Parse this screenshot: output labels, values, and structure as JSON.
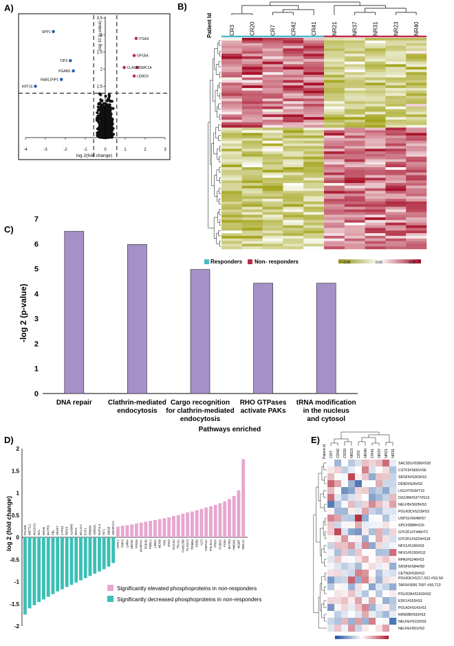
{
  "panels": {
    "a": "A)",
    "b": "B)",
    "c": "C)",
    "d": "D)",
    "e": "E)"
  },
  "colors": {
    "responder": "#4bb7c9",
    "nonresponder": "#c0294a",
    "bar_purple": "#a690c8",
    "pink": "#e7a6cf",
    "teal": "#3bbfb6",
    "blue_dot": "#1f63b0",
    "red_dot": "#c0294a",
    "olive": "#a5a520",
    "crimson": "#a8112a"
  },
  "chart_data": [
    {
      "type": "scatter",
      "panel": "A",
      "xlabel": "log 2(fold change)",
      "ylabel": "-log 10 (p-value)",
      "xlim": [
        -4,
        3
      ],
      "ylim": [
        0,
        3.5
      ],
      "x_ticks": [
        "-4",
        "-3",
        "-2",
        "-1",
        "0",
        "1",
        "2",
        "3"
      ],
      "y_ticks": [
        "0.5",
        "1",
        "1.5",
        "2",
        "2.5",
        "3",
        "3.5"
      ],
      "thresholds": {
        "x_left": -0.58,
        "x_right": 0.58,
        "y": 1.3
      },
      "labels": [
        {
          "text": "SPP1",
          "x": -2.6,
          "y": 3.1
        },
        {
          "text": "TJP2",
          "x": -1.75,
          "y": 2.25
        },
        {
          "text": "PGAM1",
          "x": -1.6,
          "y": 1.95
        },
        {
          "text": "KRT15",
          "x": -3.5,
          "y": 1.5
        },
        {
          "text": "RAB11FIP1",
          "x": -2.2,
          "y": 1.7
        },
        {
          "text": "ITGA3",
          "x": 1.55,
          "y": 2.9
        },
        {
          "text": "GP1BA",
          "x": 1.45,
          "y": 2.4
        },
        {
          "text": "SMC1A",
          "x": 1.6,
          "y": 2.05
        },
        {
          "text": "LEMD3",
          "x": 1.45,
          "y": 1.8
        },
        {
          "text": "CLASP2",
          "x": 0.95,
          "y": 2.05
        }
      ]
    },
    {
      "type": "heatmap",
      "panel": "B",
      "row_header": "Patient Id",
      "columns": [
        "CR3",
        "CR20",
        "CR7",
        "CR42",
        "CR41",
        "NR21",
        "NR37",
        "NR31",
        "NR23",
        "NR40"
      ],
      "legend_groups": [
        "Responders",
        "Non- responders"
      ],
      "color_scale": [
        "-1.50",
        "0.00",
        "1.50"
      ],
      "row_count": 80
    },
    {
      "type": "bar",
      "panel": "C",
      "title": "Pathways enriched",
      "ylabel": "-log 2 (p-value)",
      "ylim": [
        0,
        7
      ],
      "y_ticks": [
        "0",
        "1",
        "2",
        "3",
        "4",
        "5",
        "6",
        "7"
      ],
      "categories": [
        [
          "DNA repair"
        ],
        [
          "Clathrin-mediated",
          "endocytosis"
        ],
        [
          "Cargo recognition",
          "for clathrin-mediated",
          "endocytosis"
        ],
        [
          "RHO GTPases",
          "activate PAKs"
        ],
        [
          "tRNA modification",
          "in the nucleus",
          "and cytosol"
        ]
      ],
      "values": [
        6.5,
        5.97,
        4.97,
        4.42,
        4.42
      ]
    },
    {
      "type": "bar",
      "panel": "D",
      "ylabel": "log 2 (fold change)",
      "ylim": [
        -2,
        2
      ],
      "y_ticks": [
        "-2",
        "-1.5",
        "-1",
        "-0.5",
        "0",
        "0.5",
        "1",
        "1.5",
        "2"
      ],
      "series": [
        {
          "name": "Significantly decreased phosphoproteins in non-responders",
          "labels": [
            "PGAM1",
            "METTL1",
            "NUCKS1",
            "NCL",
            "MSH6",
            "MATR3",
            "FBL",
            "SRSF7",
            "CTPS1",
            "RIPK3",
            "ALKBH5",
            "RPA2",
            "BCL11A",
            "EAF1",
            "RBM34",
            "ARID3A",
            "NAP1L4",
            "HIT1",
            "SMG8",
            "SMARCC1"
          ],
          "values": [
            -1.74,
            -1.6,
            -1.53,
            -1.46,
            -1.4,
            -1.34,
            -1.28,
            -1.22,
            -1.17,
            -1.12,
            -1.07,
            -1.02,
            -0.97,
            -0.92,
            -0.87,
            -0.82,
            -0.77,
            -0.72,
            -0.66,
            -0.58
          ]
        },
        {
          "name": "Significantly elevated phosphoproteins in non-responders",
          "labels": [
            "APPL1",
            "TMPO",
            "LMNA",
            "UBXN1",
            "TPD52",
            "MYBPHA",
            "PDE4D",
            "FMNL1",
            "LIMD1",
            "MCM3",
            "PML",
            "DIDO",
            "DOCK2",
            "TRA2A",
            "FAM129B",
            "PLXDC2",
            "TRIM54",
            "DDB2",
            "ILF3",
            "HSPA4A",
            "POLR1A",
            "PRKP",
            "PGBD1",
            "FLNA",
            "MATR3",
            "HMGN1",
            "MGMT",
            "SMC1A"
          ],
          "values": [
            0.24,
            0.26,
            0.27,
            0.29,
            0.31,
            0.33,
            0.35,
            0.37,
            0.39,
            0.41,
            0.43,
            0.45,
            0.48,
            0.5,
            0.53,
            0.56,
            0.58,
            0.61,
            0.64,
            0.67,
            0.7,
            0.73,
            0.77,
            0.81,
            0.86,
            0.93,
            1.06,
            1.76
          ]
        }
      ]
    },
    {
      "type": "heatmap",
      "panel": "E",
      "row_header": "Patient Id",
      "columns": [
        "CR7",
        "CR42",
        "CR20",
        "NR23",
        "CR3",
        "NR40",
        "CR41",
        "NR37",
        "NR21",
        "NR31"
      ],
      "rows": [
        "SAC3D1#S356#S20",
        "CSTF3#S691#S6",
        "SRSF6#S303#S3",
        "DDB2#S26#S3",
        "LIG1#T918#T19",
        "DGCR8#S377#S13",
        "NELFB#S605#S3",
        "POLR3C#S218#S3",
        "USP11#S648#S7",
        "XPC#S884#S16",
        "GTF2F1#T446#T2",
        "GTF2F1#S224#S18",
        "NFX1#S150#S3",
        "NFX1#S150#S11",
        "RPA2#S246#S3",
        "SRSF6#S84#S9",
        "CETN2#S20#S2",
        "POLR3C#S217,S21 #S3,S4",
        "TAF6#S690,T697 #S6,T13",
        "POLR2A#S1910#S2",
        "EDF1#S53#S3",
        "POLA2#S141#S1",
        "RRM2B#S92#S3",
        "NELFE#S115#S3",
        "NELFE#S51#S3"
      ]
    }
  ]
}
